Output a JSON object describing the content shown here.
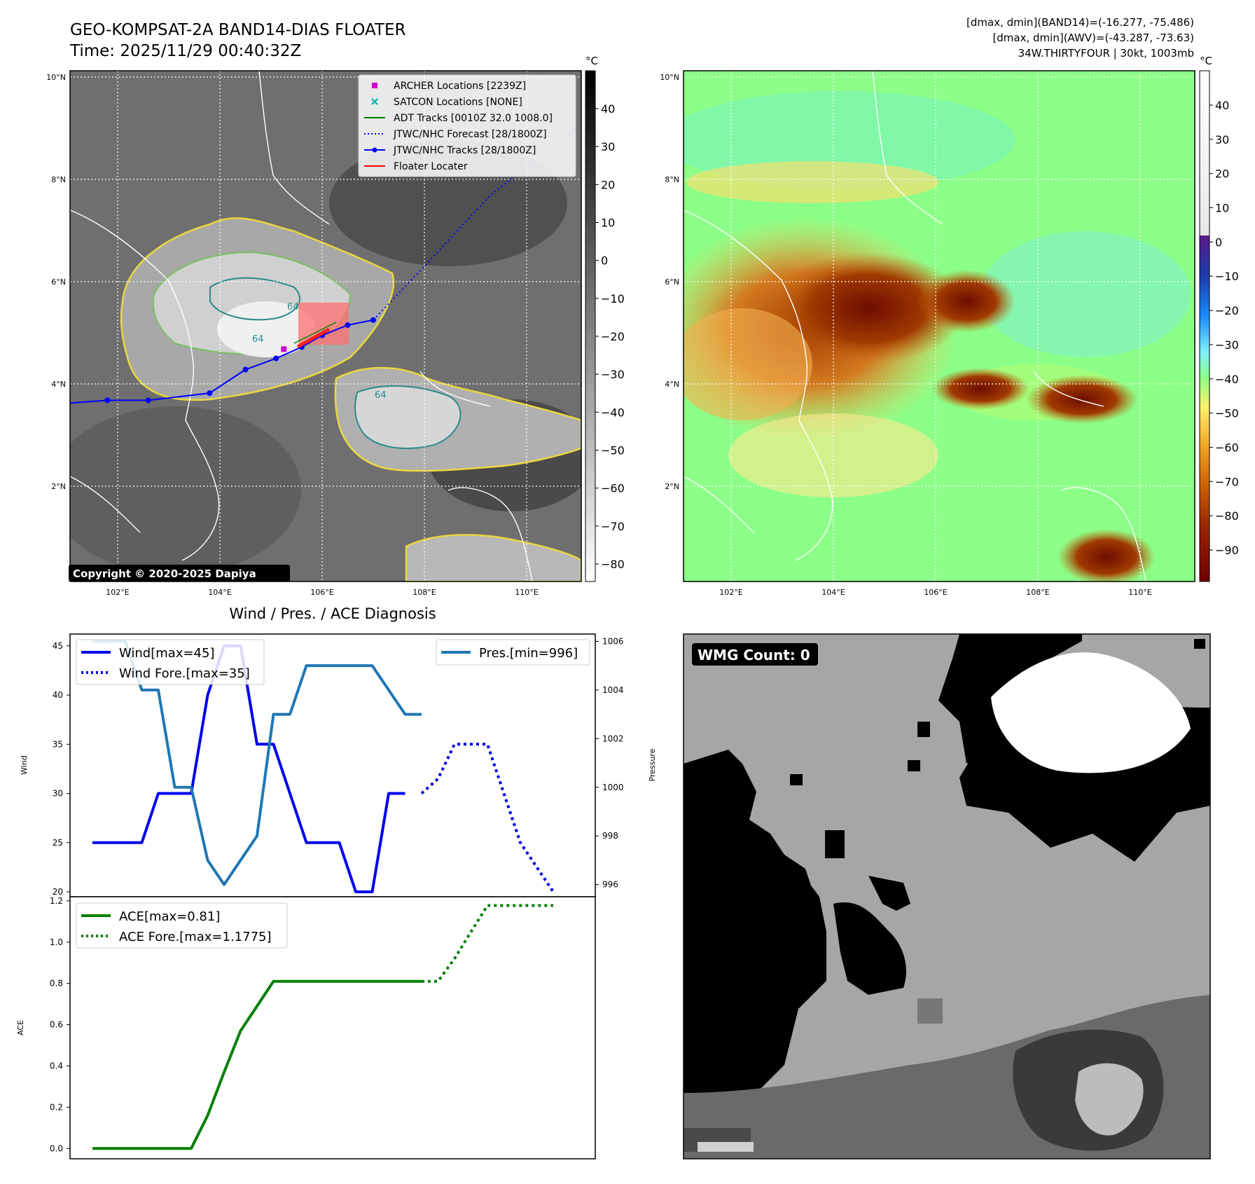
{
  "header": {
    "title_line1": "GEO-KOMPSAT-2A BAND14-DIAS FLOATER",
    "title_line2": "Time: 2025/11/29 00:40:32Z",
    "info_line1": "[dmax, dmin](BAND14)=(-16.277, -75.486)",
    "info_line2": "[dmax, dmin](AWV)=(-43.287, -73.63)",
    "info_line3": "34W.THIRTYFOUR | 30kt, 1003mb"
  },
  "map": {
    "lat_labels": [
      "10°N",
      "8°N",
      "6°N",
      "4°N",
      "2°N"
    ],
    "lon_labels": [
      "102°E",
      "104°E",
      "106°E",
      "108°E",
      "110°E"
    ],
    "copyright": "Copyright © 2020-2025 Dapiya",
    "contour_label": "64",
    "legend": [
      {
        "label": "ARCHER Locations [2239Z]",
        "color": "#cc00cc",
        "marker": "square"
      },
      {
        "label": "SATCON Locations [NONE]",
        "color": "#17b3b3",
        "marker": "x"
      },
      {
        "label": "ADT Tracks [0010Z 32.0 1008.0]",
        "color": "#008000",
        "marker": "line"
      },
      {
        "label": "JTWC/NHC Forecast [28/1800Z]",
        "color": "#0000ff",
        "marker": "dotted"
      },
      {
        "label": "JTWC/NHC Tracks [28/1800Z]",
        "color": "#0000ff",
        "marker": "line-dot"
      },
      {
        "label": "Floater Locater",
        "color": "#ff0000",
        "marker": "line"
      }
    ],
    "best_track": [
      [
        101.0,
        3.62
      ],
      [
        101.8,
        3.68
      ],
      [
        102.6,
        3.68
      ],
      [
        103.8,
        3.82
      ],
      [
        104.5,
        4.28
      ],
      [
        105.1,
        4.5
      ],
      [
        105.6,
        4.72
      ],
      [
        106.0,
        4.95
      ],
      [
        106.5,
        5.15
      ],
      [
        107.0,
        5.25
      ]
    ],
    "forecast_track": [
      [
        107.0,
        5.25
      ],
      [
        108.0,
        6.3
      ],
      [
        109.3,
        7.7
      ],
      [
        111.0,
        9.0
      ]
    ],
    "archer_point": [
      105.25,
      4.68
    ]
  },
  "colorbar_gray": {
    "unit": "°C",
    "ticks": [
      "40",
      "30",
      "20",
      "10",
      "0",
      "−10",
      "−20",
      "−30",
      "−40",
      "−50",
      "−60",
      "−70",
      "−80"
    ]
  },
  "colorbar_awv": {
    "unit": "°C",
    "ticks": [
      "40",
      "30",
      "20",
      "10",
      "0",
      "−10",
      "−20",
      "−30",
      "−40",
      "−50",
      "−60",
      "−70",
      "−80",
      "−90"
    ]
  },
  "wmg": {
    "label": "WMG Count: 0"
  },
  "chart_data": [
    {
      "type": "line",
      "title": "Wind / Pres. / ACE Diagnosis",
      "ylabel": "Wind",
      "y2label": "Pressure",
      "ylim": [
        19.5,
        46.2
      ],
      "y2lim": [
        995.5,
        1006.3
      ],
      "xlim": [
        0,
        30
      ],
      "yticks": [
        "45",
        "40",
        "35",
        "30",
        "25",
        "20"
      ],
      "y2ticks": [
        "1006",
        "1004",
        "1002",
        "1000",
        "998",
        "996"
      ],
      "series": [
        {
          "name": "Wind[max=45]",
          "color": "#0000ee",
          "style": "solid",
          "axis": "left",
          "x": [
            0,
            3,
            4,
            5,
            6,
            7,
            8,
            9,
            10,
            11,
            12,
            13,
            14,
            15,
            16,
            17,
            18,
            19
          ],
          "y": [
            25,
            25,
            30,
            30,
            30,
            40,
            45,
            45,
            35,
            35,
            30,
            25,
            25,
            25,
            20,
            20,
            30,
            30
          ]
        },
        {
          "name": "Wind Fore.[max=35]",
          "color": "#0000ee",
          "style": "dotted",
          "axis": "left",
          "x": [
            20,
            21,
            22,
            23,
            24,
            25,
            26,
            27,
            28
          ],
          "y": [
            30,
            31.5,
            35,
            35,
            35,
            30,
            25,
            22.5,
            20
          ]
        },
        {
          "name": "Pres.[min=996]",
          "color": "#1f77b4",
          "style": "solid",
          "axis": "right",
          "x": [
            0,
            1,
            2,
            3,
            4,
            5,
            6,
            7,
            8,
            9,
            10,
            11,
            12,
            13,
            14,
            15,
            16,
            17,
            18,
            19,
            20
          ],
          "y": [
            1006,
            1006,
            1006,
            1004,
            1004,
            1000,
            1000,
            997,
            996,
            997,
            998,
            1003,
            1003,
            1005,
            1005,
            1005,
            1005,
            1005,
            1004,
            1003,
            1003
          ]
        }
      ]
    },
    {
      "type": "line",
      "ylabel": "ACE",
      "ylim": [
        -0.05,
        1.22
      ],
      "xlim": [
        0,
        30
      ],
      "yticks": [
        "1.2",
        "1.0",
        "0.8",
        "0.6",
        "0.4",
        "0.2",
        "0.0"
      ],
      "series": [
        {
          "name": "ACE[max=0.81]",
          "color": "#008000",
          "style": "solid",
          "x": [
            0,
            3,
            6,
            7,
            8,
            9,
            10,
            11,
            12,
            13,
            14,
            15,
            16,
            17,
            18,
            19,
            20
          ],
          "y": [
            0,
            0,
            0,
            0.16,
            0.37,
            0.57,
            0.69,
            0.81,
            0.81,
            0.81,
            0.81,
            0.81,
            0.81,
            0.81,
            0.81,
            0.81,
            0.81
          ]
        },
        {
          "name": "ACE Fore.[max=1.1775]",
          "color": "#008000",
          "style": "dotted",
          "x": [
            20,
            21,
            22,
            23,
            24,
            25,
            26,
            27,
            28
          ],
          "y": [
            0.81,
            0.81,
            0.92,
            1.05,
            1.1775,
            1.1775,
            1.1775,
            1.1775,
            1.1775
          ]
        }
      ]
    }
  ]
}
